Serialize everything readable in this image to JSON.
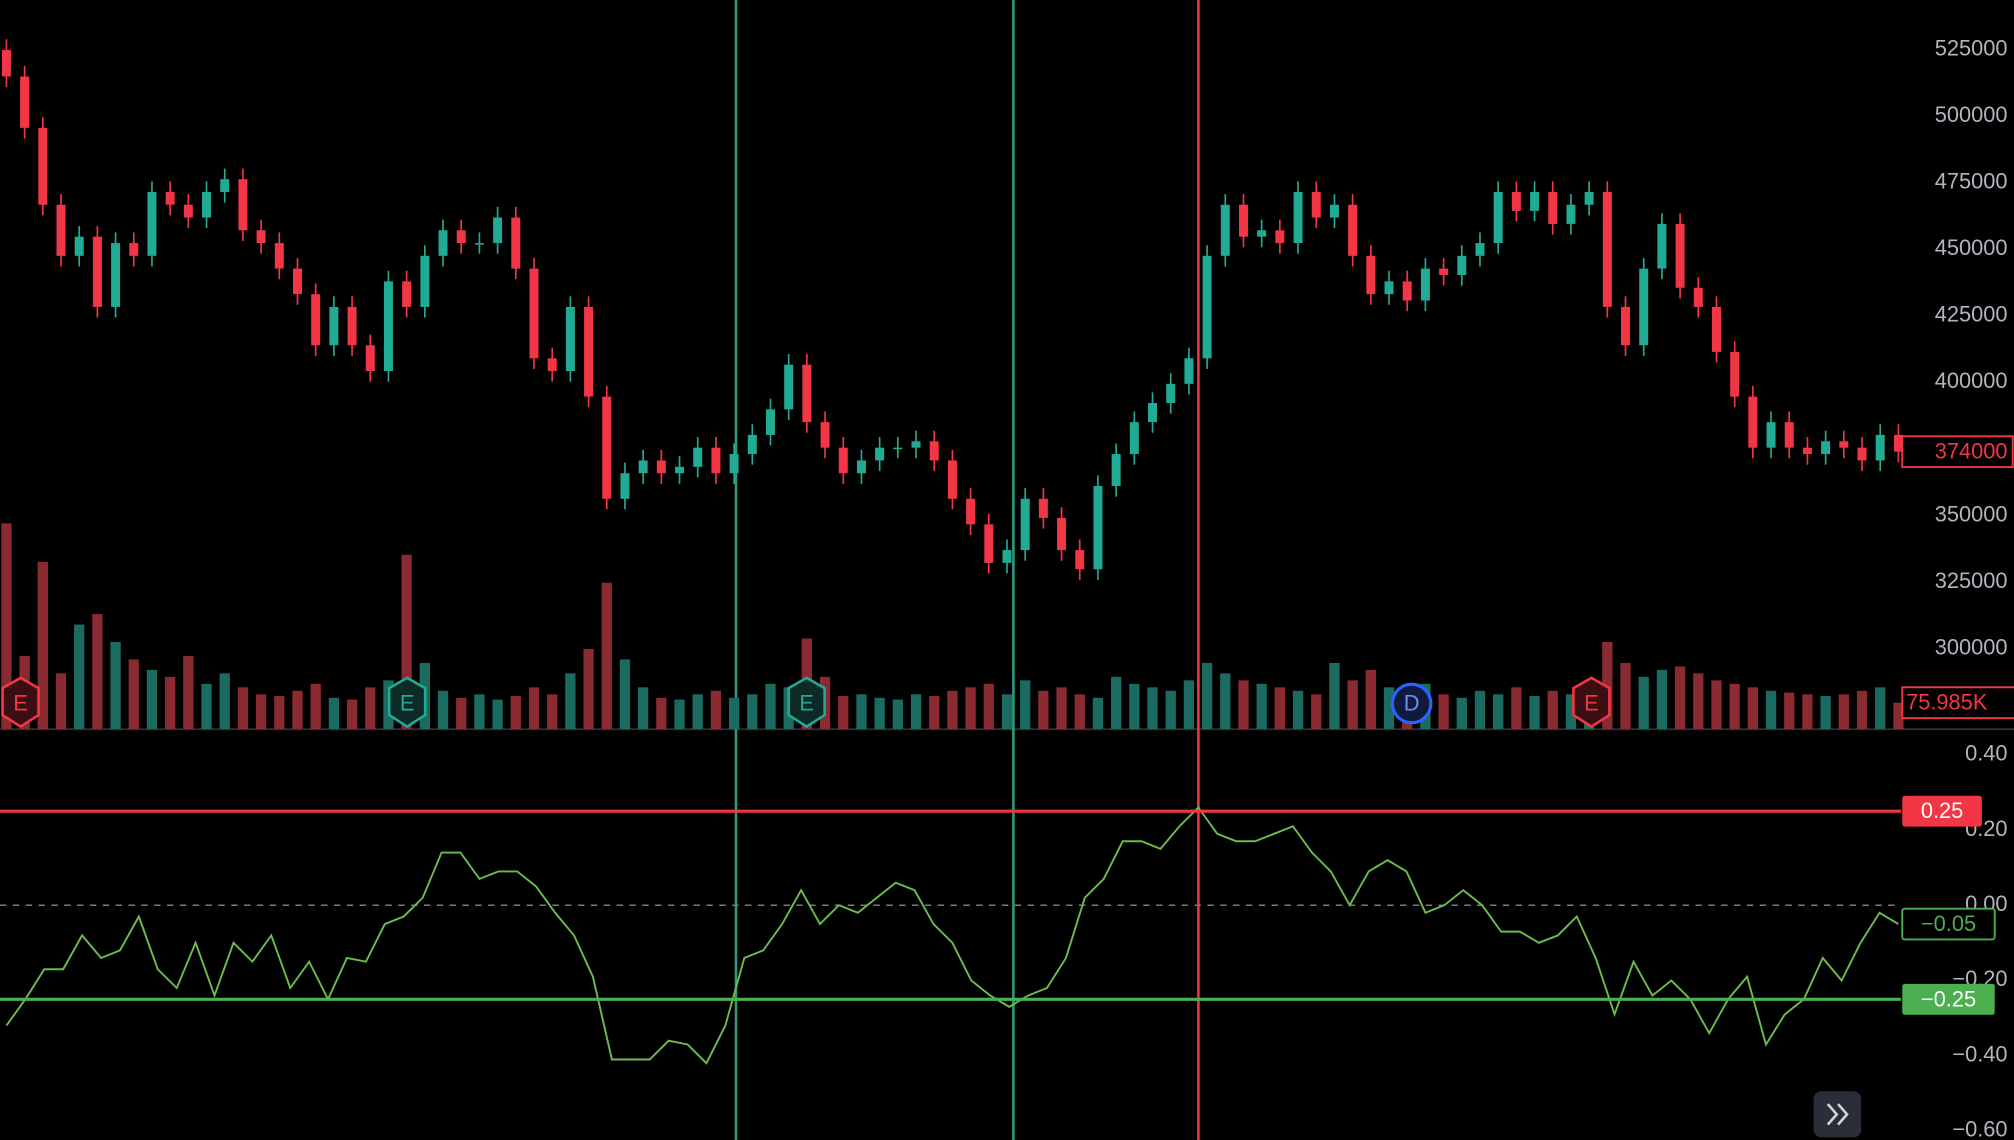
{
  "chart_data": [
    {
      "type": "candlestick",
      "up_color": "#22ab94",
      "down_color": "#f23645",
      "volume_up_color": "#1c6b60",
      "volume_down_color": "#8a2a31",
      "ylim": [
        269700,
        543750
      ],
      "yticks": [
        300000,
        325000,
        350000,
        375000,
        400000,
        425000,
        450000,
        475000,
        500000,
        525000
      ],
      "open": [
        525000,
        515000,
        495700,
        466800,
        447600,
        454800,
        428400,
        452400,
        447600,
        471600,
        466800,
        462000,
        471600,
        476400,
        457200,
        452400,
        442800,
        433200,
        414000,
        428400,
        414000,
        404300,
        438000,
        428400,
        447600,
        457200,
        452400,
        452400,
        462000,
        442800,
        409100,
        404300,
        428400,
        394700,
        356300,
        365900,
        370700,
        365900,
        368300,
        375500,
        365900,
        373100,
        380300,
        389900,
        406700,
        385100,
        375500,
        365900,
        370700,
        375500,
        375500,
        377900,
        370700,
        356300,
        346700,
        332200,
        337000,
        356300,
        349100,
        337000,
        329800,
        361100,
        373100,
        385100,
        392300,
        399500,
        409100,
        447600,
        466800,
        454800,
        457200,
        452400,
        471600,
        462000,
        466800,
        447600,
        433200,
        438000,
        430800,
        442800,
        440400,
        447600,
        452400,
        471600,
        464500,
        471600,
        459600,
        466800,
        471600,
        428400,
        414000,
        442800,
        459600,
        435600,
        428400,
        411500,
        394700,
        375500,
        385100,
        375500,
        373100,
        377900,
        375500,
        370700,
        380300
      ],
      "high": [
        529000,
        519000,
        499700,
        470800,
        458800,
        458800,
        456400,
        456400,
        475600,
        475600,
        470800,
        475600,
        480400,
        480400,
        461200,
        456400,
        446800,
        437200,
        432400,
        432400,
        418000,
        442000,
        442000,
        451600,
        461200,
        461200,
        456400,
        466000,
        466000,
        446800,
        413100,
        432400,
        432400,
        398700,
        369900,
        374700,
        374700,
        372300,
        379500,
        379500,
        377100,
        384300,
        393900,
        410700,
        410700,
        389100,
        379500,
        374700,
        379500,
        379500,
        381900,
        381900,
        374700,
        360300,
        350700,
        341000,
        360300,
        360300,
        353100,
        341000,
        365100,
        377100,
        389100,
        396300,
        403500,
        413100,
        451600,
        470800,
        470800,
        461200,
        461200,
        475600,
        475600,
        470800,
        470800,
        451600,
        442000,
        442000,
        446800,
        446800,
        451600,
        456400,
        475600,
        475600,
        475600,
        475600,
        470800,
        475600,
        475600,
        432400,
        446800,
        463600,
        463600,
        439600,
        432400,
        415500,
        398700,
        389100,
        389100,
        379500,
        381900,
        381900,
        379500,
        384300,
        384300
      ],
      "low": [
        511000,
        491700,
        462800,
        443600,
        443600,
        424400,
        424400,
        443600,
        443600,
        462800,
        458000,
        458000,
        467600,
        453200,
        448400,
        438800,
        429200,
        410000,
        410000,
        410000,
        400300,
        400300,
        424400,
        424400,
        443600,
        448400,
        448400,
        448400,
        438800,
        405100,
        400300,
        400300,
        390700,
        352300,
        352300,
        361900,
        361900,
        361900,
        364300,
        361900,
        361900,
        369100,
        376300,
        385900,
        381100,
        371500,
        361900,
        361900,
        366700,
        371500,
        371500,
        366700,
        352300,
        342700,
        328200,
        328200,
        333000,
        345100,
        333000,
        325800,
        325800,
        357100,
        369100,
        381100,
        388300,
        395500,
        405100,
        443600,
        450800,
        450800,
        448400,
        448400,
        458000,
        458000,
        443600,
        429200,
        429200,
        426800,
        426800,
        436400,
        436400,
        443600,
        448400,
        460500,
        460500,
        455600,
        455600,
        462800,
        424400,
        410000,
        410000,
        438800,
        431600,
        424400,
        407500,
        390700,
        371500,
        371500,
        371500,
        369100,
        369100,
        371500,
        366700,
        366700,
        370000
      ],
      "close": [
        515000,
        495700,
        466800,
        447600,
        454800,
        428400,
        452400,
        447600,
        471600,
        466800,
        462000,
        471600,
        476400,
        457200,
        452400,
        442800,
        433200,
        414000,
        428400,
        414000,
        404300,
        438000,
        428400,
        447600,
        457200,
        452400,
        452400,
        462000,
        442800,
        409100,
        404300,
        428400,
        394700,
        356300,
        365900,
        370700,
        365900,
        368300,
        375500,
        365900,
        373100,
        380300,
        389900,
        406700,
        385100,
        375500,
        365900,
        370700,
        375500,
        375500,
        377900,
        370700,
        356300,
        346700,
        332200,
        337000,
        356300,
        349100,
        337000,
        329800,
        361100,
        373100,
        385100,
        392300,
        399500,
        409100,
        447600,
        466800,
        454800,
        457200,
        452400,
        471600,
        462000,
        466800,
        447600,
        433200,
        438000,
        430800,
        442800,
        440400,
        447600,
        452400,
        471600,
        464500,
        471600,
        459600,
        466800,
        471600,
        428400,
        414000,
        442800,
        459600,
        435600,
        428400,
        411500,
        394700,
        375500,
        385100,
        375500,
        373100,
        377900,
        375500,
        370700,
        380300,
        374000
      ],
      "volume": [
        590000,
        210000,
        480000,
        160000,
        300000,
        330000,
        250000,
        200000,
        170000,
        150000,
        210000,
        130000,
        160000,
        120000,
        100000,
        95000,
        110000,
        130000,
        90000,
        85000,
        120000,
        140000,
        500000,
        190000,
        110000,
        90000,
        100000,
        85000,
        95000,
        120000,
        100000,
        160000,
        230000,
        420000,
        200000,
        120000,
        90000,
        85000,
        100000,
        110000,
        90000,
        100000,
        130000,
        120000,
        260000,
        150000,
        95000,
        100000,
        90000,
        85000,
        100000,
        95000,
        110000,
        120000,
        130000,
        100000,
        140000,
        110000,
        120000,
        100000,
        90000,
        150000,
        130000,
        120000,
        110000,
        140000,
        190000,
        160000,
        140000,
        130000,
        120000,
        110000,
        100000,
        190000,
        140000,
        170000,
        120000,
        110000,
        130000,
        100000,
        90000,
        110000,
        100000,
        120000,
        95000,
        110000,
        100000,
        130000,
        250000,
        190000,
        150000,
        170000,
        180000,
        160000,
        140000,
        130000,
        120000,
        110000,
        105000,
        100000,
        95000,
        100000,
        110000,
        120000,
        75985
      ],
      "volume_lim": [
        0,
        600000
      ],
      "last_price": 374000,
      "last_volume": {
        "value": 75985,
        "label": "75.985K"
      },
      "event_markers": [
        "E",
        "E",
        "E",
        "D",
        "E"
      ]
    },
    {
      "type": "line",
      "color": "#6dbb4c",
      "ylim": [
        -0.624,
        0.468
      ],
      "yticks": [
        {
          "value": 0.4,
          "label": "0.40"
        },
        {
          "value": 0.2,
          "label": "0.20"
        },
        {
          "value": 0,
          "label": "0.00"
        },
        {
          "value": -0.2,
          "label": "−0.20"
        },
        {
          "value": -0.4,
          "label": "−0.40"
        },
        {
          "value": -0.6,
          "label": "−0.60"
        }
      ],
      "values": [
        -0.32,
        -0.25,
        -0.17,
        -0.17,
        -0.08,
        -0.14,
        -0.12,
        -0.03,
        -0.17,
        -0.22,
        -0.1,
        -0.24,
        -0.1,
        -0.15,
        -0.08,
        -0.22,
        -0.15,
        -0.25,
        -0.14,
        -0.15,
        -0.05,
        -0.03,
        0.02,
        0.14,
        0.14,
        0.07,
        0.09,
        0.09,
        0.05,
        -0.02,
        -0.08,
        -0.19,
        -0.41,
        -0.41,
        -0.41,
        -0.36,
        -0.37,
        -0.42,
        -0.32,
        -0.14,
        -0.12,
        -0.05,
        0.04,
        -0.05,
        0,
        -0.02,
        0.02,
        0.06,
        0.04,
        -0.05,
        -0.1,
        -0.2,
        -0.24,
        -0.27,
        -0.24,
        -0.22,
        -0.14,
        0.02,
        0.07,
        0.17,
        0.17,
        0.15,
        0.21,
        0.26,
        0.19,
        0.17,
        0.17,
        0.19,
        0.21,
        0.14,
        0.09,
        0,
        0.09,
        0.12,
        0.09,
        -0.02,
        0,
        0.04,
        0,
        -0.07,
        -0.07,
        -0.1,
        -0.08,
        -0.03,
        -0.14,
        -0.29,
        -0.15,
        -0.24,
        -0.2,
        -0.25,
        -0.34,
        -0.25,
        -0.19,
        -0.37,
        -0.29,
        -0.25,
        -0.14,
        -0.2,
        -0.1,
        -0.02,
        -0.05
      ],
      "upper_level": 0.25,
      "upper_color": "#f23645",
      "lower_level": {
        "value": -0.25,
        "label": "−0.25"
      },
      "lower_color": "#4caf50",
      "last_value": {
        "value": -0.05,
        "label": "−0.05"
      }
    }
  ]
}
